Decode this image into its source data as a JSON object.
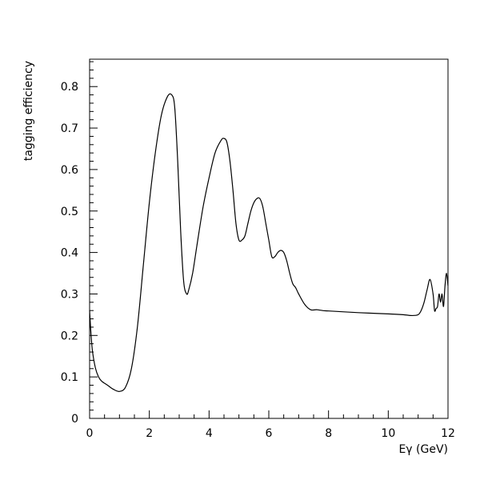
{
  "chart_data": {
    "type": "line",
    "title": "",
    "xlabel": "Eγ (GeV)",
    "ylabel": "tagging efficiency",
    "xlim": [
      0,
      12
    ],
    "ylim": [
      0,
      0.866
    ],
    "grid": false,
    "x_ticks": [
      "0",
      "2",
      "4",
      "6",
      "8",
      "10",
      "12"
    ],
    "y_ticks": [
      "0",
      "0.1",
      "0.2",
      "0.3",
      "0.4",
      "0.5",
      "0.6",
      "0.7",
      "0.8"
    ],
    "series": [
      {
        "x": [
          0,
          0.05,
          0.1,
          0.2,
          0.3,
          0.4,
          0.6,
          0.8,
          1.0,
          1.2,
          1.4,
          1.6,
          1.8,
          2.0,
          2.2,
          2.4,
          2.6,
          2.75,
          2.85,
          2.95,
          3.05,
          3.15,
          3.25,
          3.32,
          3.45,
          3.6,
          3.8,
          4.0,
          4.2,
          4.4,
          4.5,
          4.6,
          4.7,
          4.8,
          4.9,
          5.0,
          5.1,
          5.2,
          5.3,
          5.4,
          5.5,
          5.6,
          5.7,
          5.8,
          5.9,
          6.0,
          6.1,
          6.2,
          6.3,
          6.4,
          6.5,
          6.6,
          6.7,
          6.8,
          6.9,
          7.0,
          7.2,
          7.4,
          7.6,
          7.8,
          8.0,
          9.0,
          10.0,
          10.5,
          10.8,
          11.0,
          11.1,
          11.2,
          11.3,
          11.4,
          11.5,
          11.55,
          11.6,
          11.65,
          11.7,
          11.75,
          11.8,
          11.85,
          11.9,
          11.95,
          12.0
        ],
        "y": [
          0.26,
          0.2,
          0.16,
          0.12,
          0.1,
          0.09,
          0.08,
          0.07,
          0.065,
          0.075,
          0.12,
          0.22,
          0.37,
          0.52,
          0.64,
          0.73,
          0.775,
          0.78,
          0.75,
          0.62,
          0.45,
          0.33,
          0.3,
          0.31,
          0.35,
          0.42,
          0.51,
          0.58,
          0.64,
          0.67,
          0.675,
          0.665,
          0.62,
          0.55,
          0.47,
          0.43,
          0.43,
          0.44,
          0.47,
          0.5,
          0.52,
          0.53,
          0.53,
          0.51,
          0.47,
          0.43,
          0.39,
          0.39,
          0.4,
          0.405,
          0.4,
          0.38,
          0.35,
          0.325,
          0.315,
          0.3,
          0.275,
          0.262,
          0.262,
          0.26,
          0.259,
          0.255,
          0.252,
          0.25,
          0.248,
          0.25,
          0.26,
          0.28,
          0.31,
          0.335,
          0.3,
          0.26,
          0.265,
          0.27,
          0.3,
          0.28,
          0.3,
          0.27,
          0.32,
          0.35,
          0.32
        ]
      }
    ]
  }
}
